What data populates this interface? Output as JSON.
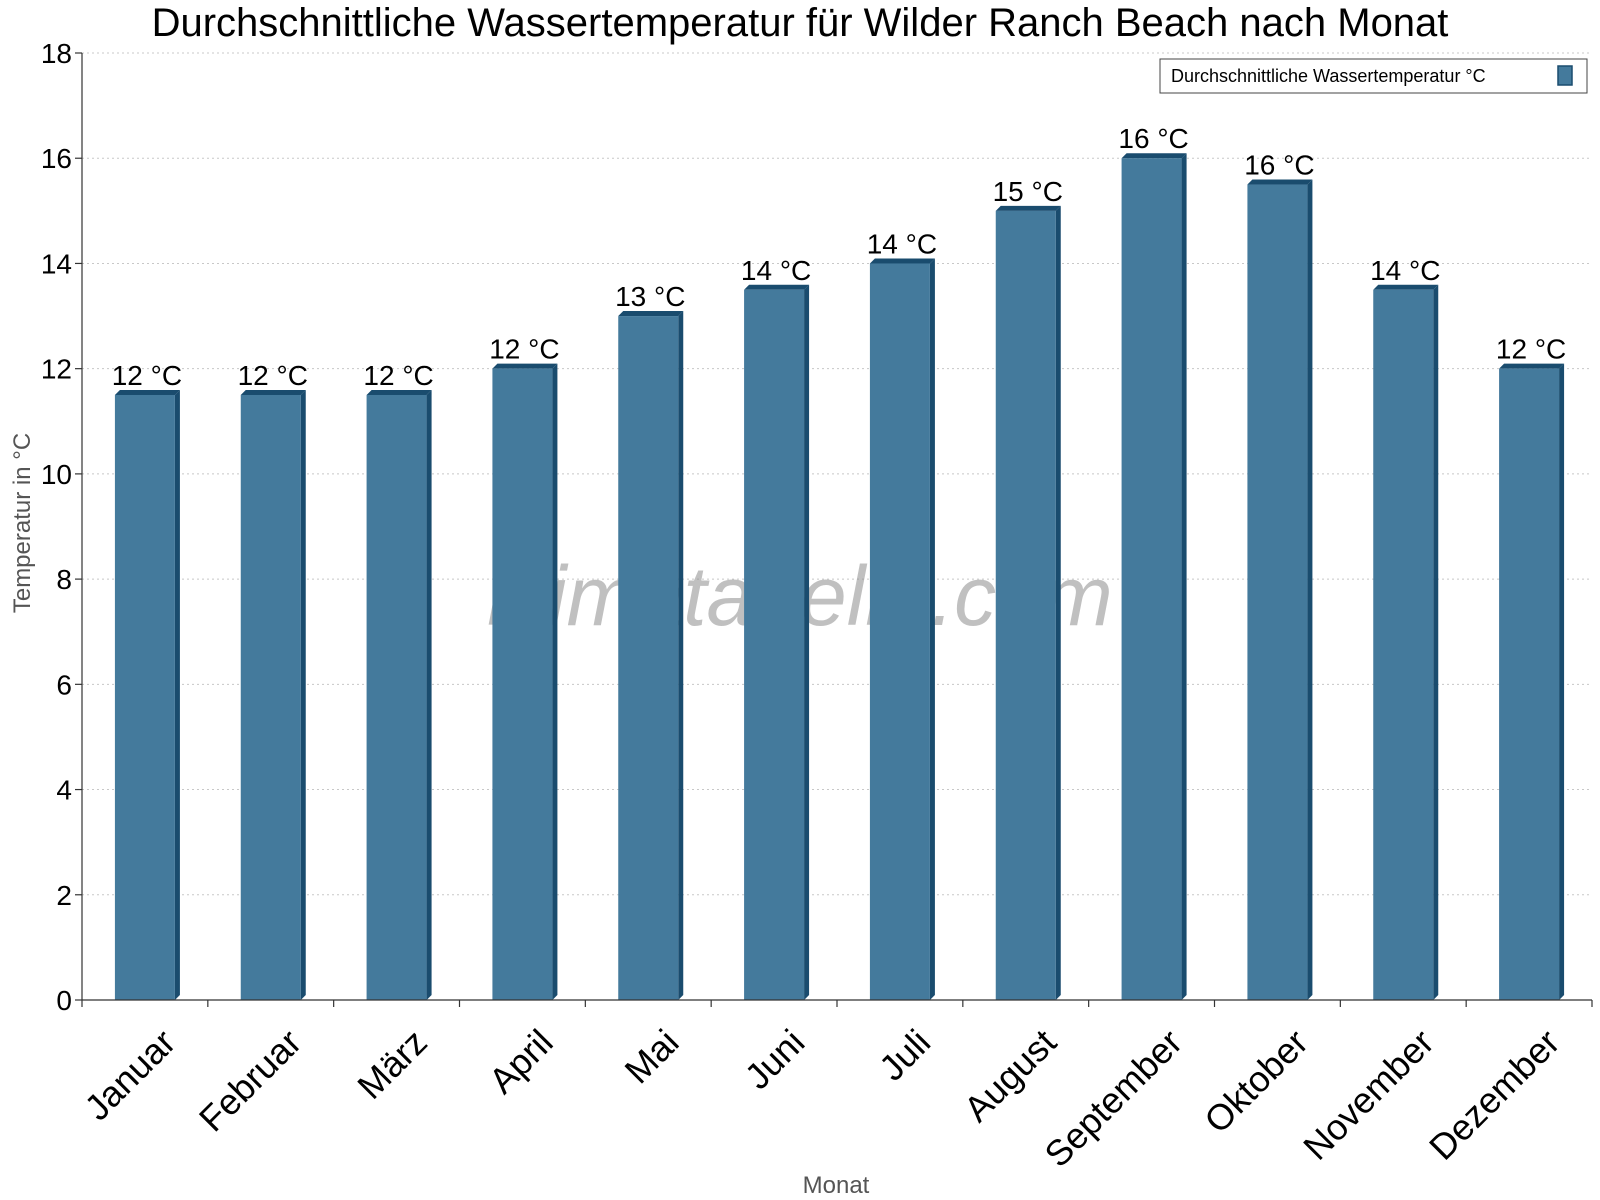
{
  "chart_data": {
    "type": "bar",
    "title": "Durchschnittliche Wassertemperatur für Wilder Ranch Beach nach Monat",
    "xlabel": "Monat",
    "ylabel": "Temperatur in °C",
    "ylim": [
      0,
      18
    ],
    "yticks": [
      "0",
      "2",
      "4",
      "6",
      "8",
      "10",
      "12",
      "14",
      "16",
      "18"
    ],
    "grid": true,
    "legend_position": "top-right",
    "categories": [
      "Januar",
      "Februar",
      "März",
      "April",
      "Mai",
      "Juni",
      "Juli",
      "August",
      "September",
      "Oktober",
      "November",
      "Dezember"
    ],
    "series": [
      {
        "name": "Durchschnittliche Wassertemperatur °C",
        "values": [
          11.5,
          11.5,
          11.5,
          12.0,
          13.0,
          13.5,
          14.0,
          15.0,
          16.0,
          15.5,
          13.5,
          12.0
        ],
        "data_labels": [
          "12 °C",
          "12 °C",
          "12 °C",
          "12 °C",
          "13 °C",
          "14 °C",
          "14 °C",
          "15 °C",
          "16 °C",
          "16 °C",
          "14 °C",
          "12 °C"
        ],
        "color": "#447a9c",
        "edge_color": "#1a4c6e"
      }
    ],
    "watermark": "klimatabelle.com"
  }
}
